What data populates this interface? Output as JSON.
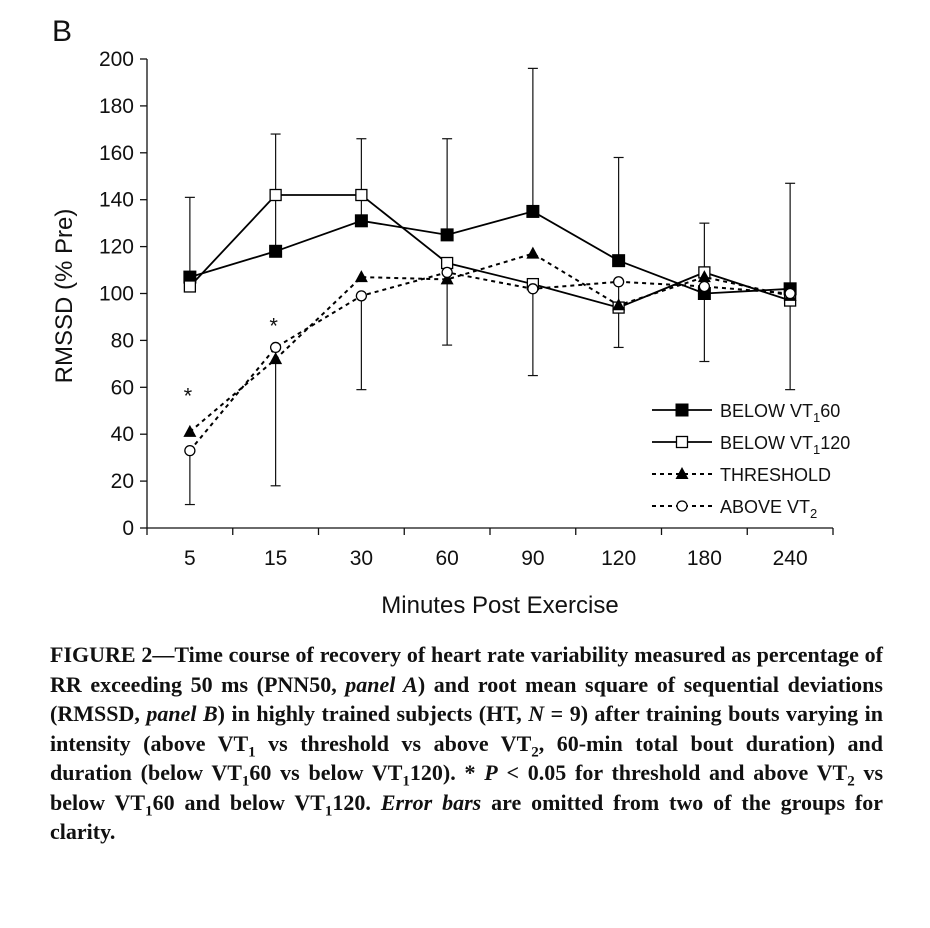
{
  "panel_label": "B",
  "chart_data": {
    "type": "line",
    "categories": [
      "5",
      "15",
      "30",
      "60",
      "90",
      "120",
      "180",
      "240"
    ],
    "ylabel": "RMSSD (% Pre)",
    "xlabel": "Minutes Post Exercise",
    "ylim": [
      0,
      200
    ],
    "yticks": [
      0,
      20,
      40,
      60,
      80,
      100,
      120,
      140,
      160,
      180,
      200
    ],
    "grid": false,
    "legend_position": "bottom-right",
    "series": [
      {
        "name": "BELOW VT160",
        "name_main": "BELOW VT",
        "name_sub": "1",
        "name_tail": "60",
        "line": "solid",
        "marker": "filled-square",
        "values": [
          107,
          118,
          131,
          125,
          135,
          114,
          100,
          102
        ],
        "error_upper": [
          141,
          168,
          166,
          166,
          196,
          158,
          130,
          147
        ],
        "error_lower": [
          107,
          118,
          131,
          125,
          135,
          114,
          100,
          102
        ]
      },
      {
        "name": "BELOW VT1120",
        "name_main": "BELOW VT",
        "name_sub": "1",
        "name_tail": "120",
        "line": "solid",
        "marker": "open-square",
        "values": [
          103,
          142,
          142,
          113,
          104,
          94,
          109,
          97
        ],
        "error_upper": [],
        "error_lower": []
      },
      {
        "name": "THRESHOLD",
        "name_main": "THRESHOLD",
        "name_sub": "",
        "name_tail": "",
        "line": "dashed",
        "marker": "filled-triangle",
        "values": [
          41,
          72,
          107,
          106,
          117,
          95,
          107,
          99
        ],
        "error_upper": [],
        "error_lower": []
      },
      {
        "name": "ABOVE VT2",
        "name_main": "ABOVE VT",
        "name_sub": "2",
        "name_tail": "",
        "line": "dashed",
        "marker": "open-circle",
        "values": [
          33,
          77,
          99,
          109,
          102,
          105,
          103,
          100
        ],
        "error_upper": [
          33,
          77,
          99,
          109,
          102,
          105,
          103,
          100
        ],
        "error_lower": [
          10,
          18,
          59,
          78,
          65,
          77,
          71,
          59
        ]
      }
    ],
    "annotations": [
      {
        "text": "*",
        "category": "5",
        "y": 59
      },
      {
        "text": "*",
        "category": "15",
        "y": 89
      }
    ]
  },
  "caption": {
    "label": "FIGURE 2",
    "dash": "—",
    "s1": "Time course of recovery of heart rate variability measured as percentage of RR exceeding 50 ms (PNN50, ",
    "s1i": "panel A",
    "s2": ") and root mean square of sequential deviations (RMSSD, ",
    "s2i": "panel B",
    "s3": ") in highly trained subjects (HT, ",
    "s3i": "N",
    "s4": " = 9) after training bouts varying in intensity (above VT",
    "sub1a": "1",
    "s5": " vs threshold vs above VT",
    "sub2a": "2",
    "s6": ", 60-min total bout duration) and duration (below VT",
    "sub1b": "1",
    "s7": "60 vs below VT",
    "sub1c": "1",
    "s8": "120). * ",
    "s8i": "P",
    "s9": " < 0.05 for threshold and above VT",
    "sub2b": "2",
    "s10": " vs below VT",
    "sub1d": "1",
    "s11": "60 and below VT",
    "sub1e": "1",
    "s12": "120. ",
    "s12i": "Error bars",
    "s13": " are omitted from two of the groups for clarity."
  }
}
